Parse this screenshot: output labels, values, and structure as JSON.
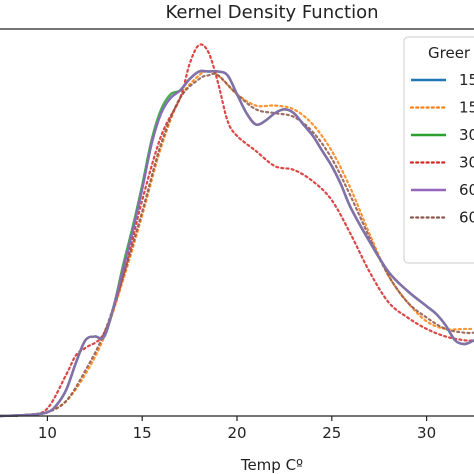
{
  "chart_data": {
    "type": "line",
    "title": "Kernel Density Function",
    "xlabel": "Temp Cº",
    "ylabel": "",
    "xlim": [
      7.5,
      32.5
    ],
    "ylim": [
      0,
      1.0
    ],
    "x_ticks": [
      10,
      15,
      20,
      25,
      30
    ],
    "grid": false,
    "legend": {
      "title": "Greer",
      "placement": "top-right"
    },
    "series": [
      {
        "name": "15",
        "color": "#1f77b4",
        "style": "solid",
        "x": [
          7.5,
          9,
          10,
          10.5,
          11,
          11.5,
          12,
          12.5,
          13,
          13.5,
          14,
          14.5,
          15,
          15.5,
          16,
          16.5,
          17,
          17.5,
          18,
          18.5,
          19,
          19.5,
          20,
          20.5,
          21,
          21.5,
          22,
          22.5,
          23,
          23.5,
          24,
          24.5,
          25,
          25.5,
          26,
          27,
          28,
          29,
          30,
          30.5,
          31,
          31.5,
          32,
          32.5
        ],
        "y": [
          0,
          0.003,
          0.01,
          0.03,
          0.07,
          0.14,
          0.2,
          0.21,
          0.21,
          0.29,
          0.39,
          0.49,
          0.6,
          0.72,
          0.8,
          0.84,
          0.86,
          0.89,
          0.91,
          0.91,
          0.91,
          0.9,
          0.85,
          0.8,
          0.77,
          0.78,
          0.8,
          0.81,
          0.8,
          0.77,
          0.74,
          0.7,
          0.66,
          0.61,
          0.55,
          0.46,
          0.38,
          0.33,
          0.29,
          0.27,
          0.24,
          0.2,
          0.19,
          0.2
        ]
      },
      {
        "name": "15",
        "color": "#ff7f0e",
        "style": "dotted",
        "x": [
          7.5,
          9,
          10,
          11,
          12,
          13,
          14,
          15,
          16,
          17,
          18,
          18.5,
          19,
          20,
          21,
          22,
          23,
          24,
          25,
          26,
          27,
          28,
          29,
          30,
          31,
          32,
          32.5
        ],
        "y": [
          0,
          0.003,
          0.01,
          0.04,
          0.11,
          0.21,
          0.36,
          0.53,
          0.71,
          0.84,
          0.9,
          0.91,
          0.9,
          0.85,
          0.82,
          0.82,
          0.81,
          0.77,
          0.7,
          0.6,
          0.48,
          0.37,
          0.3,
          0.25,
          0.23,
          0.23,
          0.23
        ]
      },
      {
        "name": "30",
        "color": "#2ca02c",
        "style": "solid",
        "x": [
          7.5,
          9,
          10,
          10.5,
          11,
          11.5,
          12,
          12.5,
          13,
          13.5,
          14,
          14.5,
          15,
          15.5,
          16,
          16.5,
          17,
          17.5,
          18,
          18.5,
          19,
          19.5,
          20,
          20.5,
          21,
          21.5,
          22,
          22.5,
          23,
          23.5,
          24,
          24.5,
          25,
          25.5,
          26,
          27,
          28,
          29,
          30,
          30.5,
          31,
          31.5,
          32,
          32.5
        ],
        "y": [
          0,
          0.003,
          0.01,
          0.03,
          0.07,
          0.14,
          0.2,
          0.21,
          0.21,
          0.29,
          0.4,
          0.5,
          0.61,
          0.73,
          0.81,
          0.85,
          0.86,
          0.89,
          0.91,
          0.91,
          0.91,
          0.9,
          0.85,
          0.8,
          0.77,
          0.78,
          0.8,
          0.81,
          0.8,
          0.77,
          0.74,
          0.7,
          0.66,
          0.61,
          0.55,
          0.46,
          0.38,
          0.33,
          0.29,
          0.27,
          0.24,
          0.2,
          0.19,
          0.2
        ]
      },
      {
        "name": "30",
        "color": "#d62728",
        "style": "dotted",
        "x": [
          7.5,
          9,
          10,
          11,
          11.5,
          12,
          13,
          14,
          15,
          16,
          17,
          17.5,
          18,
          18.5,
          19,
          19.5,
          20,
          21,
          22,
          23,
          24,
          25,
          26,
          27,
          28,
          29,
          30,
          31,
          32,
          32.5
        ],
        "y": [
          0,
          0.003,
          0.02,
          0.11,
          0.16,
          0.18,
          0.22,
          0.37,
          0.57,
          0.74,
          0.84,
          0.93,
          0.98,
          0.96,
          0.88,
          0.78,
          0.74,
          0.7,
          0.66,
          0.65,
          0.62,
          0.57,
          0.48,
          0.38,
          0.3,
          0.26,
          0.23,
          0.21,
          0.2,
          0.2
        ]
      },
      {
        "name": "60",
        "color": "#9467bd",
        "style": "solid",
        "x": [
          7.5,
          9,
          10,
          10.5,
          11,
          11.5,
          12,
          12.5,
          13,
          13.5,
          14,
          14.5,
          15,
          15.5,
          16,
          16.5,
          17,
          17.5,
          18,
          18.5,
          19,
          19.5,
          20,
          20.5,
          21,
          21.5,
          22,
          22.5,
          23,
          23.5,
          24,
          24.5,
          25,
          25.5,
          26,
          27,
          28,
          29,
          30,
          30.5,
          31,
          31.5,
          32,
          32.5
        ],
        "y": [
          0,
          0.003,
          0.01,
          0.03,
          0.07,
          0.14,
          0.2,
          0.21,
          0.21,
          0.29,
          0.39,
          0.49,
          0.6,
          0.72,
          0.8,
          0.84,
          0.86,
          0.89,
          0.91,
          0.91,
          0.91,
          0.9,
          0.85,
          0.8,
          0.77,
          0.78,
          0.8,
          0.81,
          0.8,
          0.77,
          0.74,
          0.7,
          0.66,
          0.61,
          0.55,
          0.46,
          0.38,
          0.33,
          0.29,
          0.27,
          0.24,
          0.2,
          0.19,
          0.2
        ]
      },
      {
        "name": "60",
        "color": "#8c564b",
        "style": "dotted",
        "x": [
          7.5,
          9,
          10,
          11,
          12,
          13,
          14,
          15,
          16,
          17,
          18,
          18.5,
          19,
          20,
          21,
          22,
          23,
          24,
          25,
          26,
          27,
          28,
          29,
          30,
          31,
          32,
          32.5
        ],
        "y": [
          0,
          0.003,
          0.01,
          0.04,
          0.12,
          0.22,
          0.37,
          0.54,
          0.72,
          0.84,
          0.89,
          0.9,
          0.9,
          0.85,
          0.81,
          0.8,
          0.79,
          0.75,
          0.68,
          0.58,
          0.47,
          0.37,
          0.3,
          0.26,
          0.23,
          0.22,
          0.22
        ]
      }
    ]
  }
}
